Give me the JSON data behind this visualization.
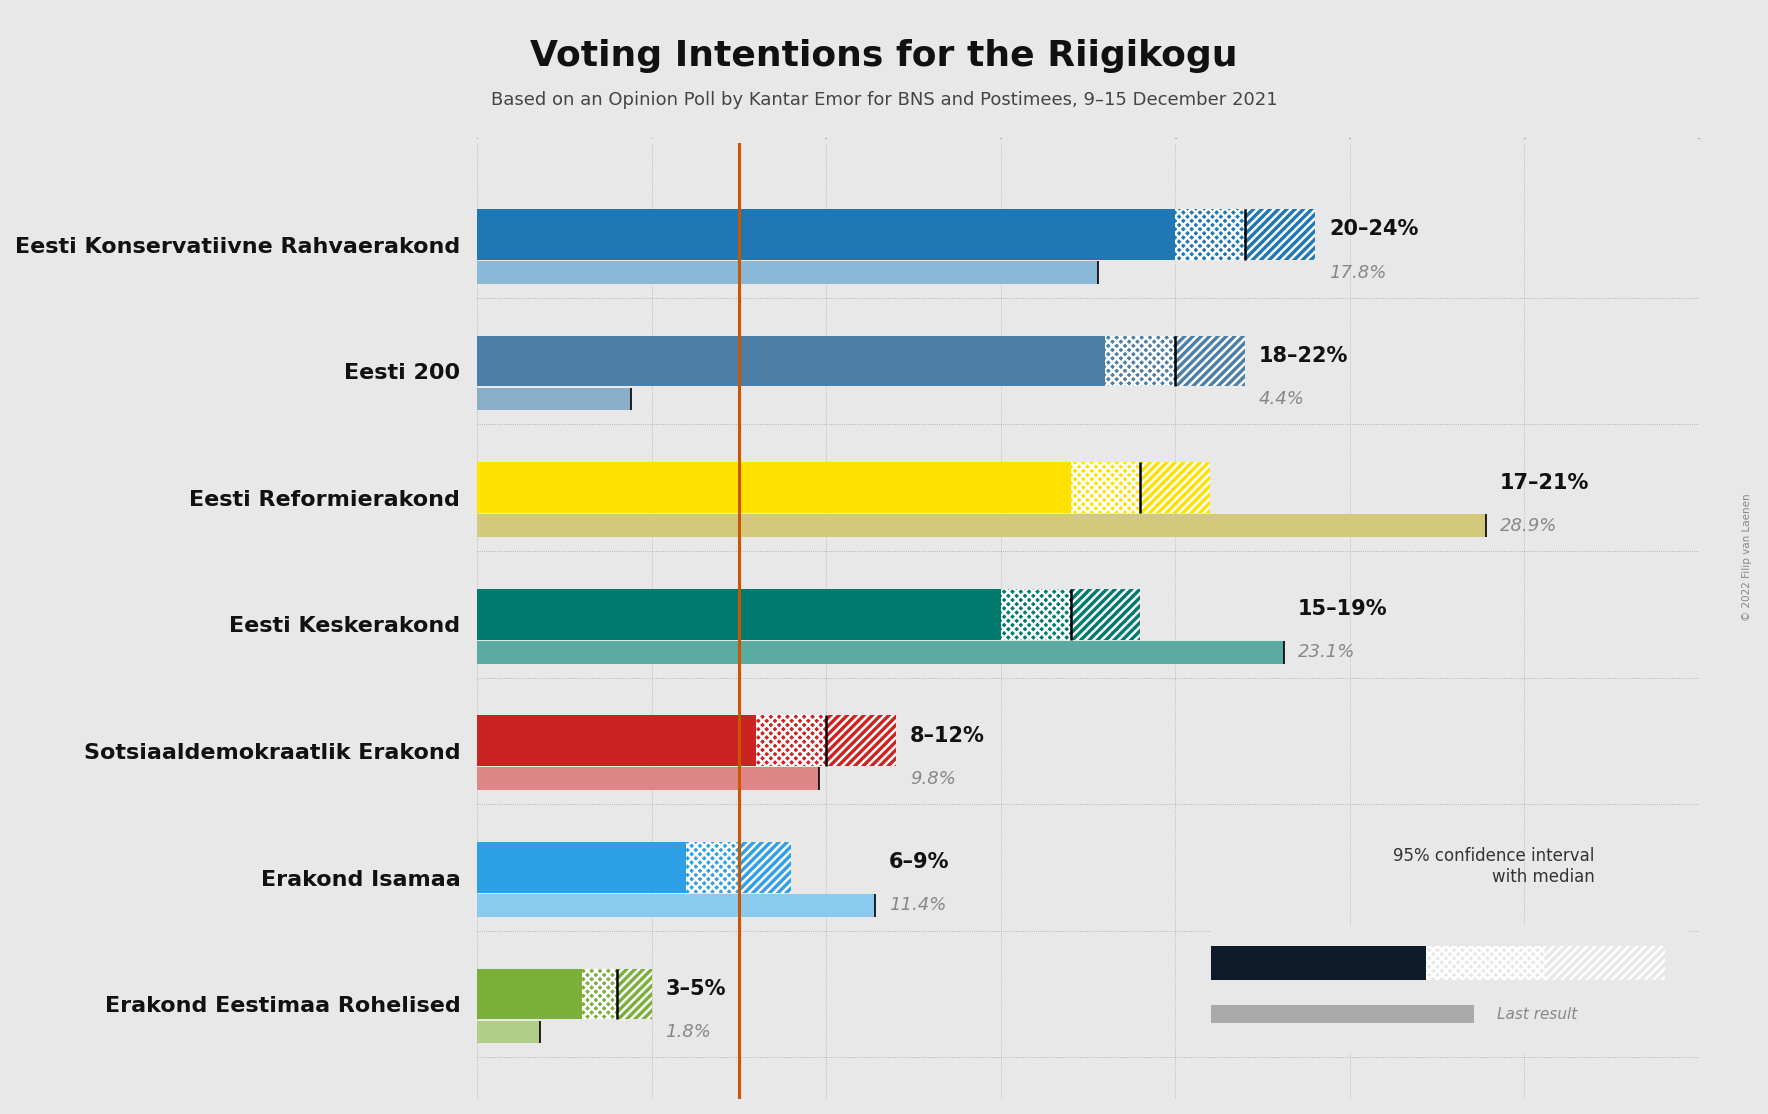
{
  "title": "Voting Intentions for the Riigikogu",
  "subtitle": "Based on an Opinion Poll by Kantar Emor for BNS and Postimees, 9–15 December 2021",
  "copyright": "© 2022 Filip van Laenen",
  "background_color": "#e8e8e8",
  "parties": [
    {
      "name": "Eesti Konservatiivne Rahvaerakond",
      "color": "#1F77B4",
      "light_color": "#8ab8d9",
      "ci_low": 20,
      "ci_high": 24,
      "median": 22,
      "last_result": 17.8,
      "label": "20–24%",
      "last_label": "17.8%"
    },
    {
      "name": "Eesti 200",
      "color": "#4B7FA8",
      "light_color": "#8aaec8",
      "ci_low": 18,
      "ci_high": 22,
      "median": 20,
      "last_result": 4.4,
      "label": "18–22%",
      "last_label": "4.4%"
    },
    {
      "name": "Eesti Reformierakond",
      "color": "#FFE200",
      "light_color": "#d4c87a",
      "ci_low": 17,
      "ci_high": 21,
      "median": 19,
      "last_result": 28.9,
      "label": "17–21%",
      "last_label": "28.9%"
    },
    {
      "name": "Eesti Keskerakond",
      "color": "#007A6E",
      "light_color": "#5aaba2",
      "ci_low": 15,
      "ci_high": 19,
      "median": 17,
      "last_result": 23.1,
      "label": "15–19%",
      "last_label": "23.1%"
    },
    {
      "name": "Sotsiaaldemokraatlik Erakond",
      "color": "#CC2222",
      "light_color": "#de8585",
      "ci_low": 8,
      "ci_high": 12,
      "median": 10,
      "last_result": 9.8,
      "label": "8–12%",
      "last_label": "9.8%"
    },
    {
      "name": "Erakond Isamaa",
      "color": "#2EA0E8",
      "light_color": "#8acaef",
      "ci_low": 6,
      "ci_high": 9,
      "median": 7.5,
      "last_result": 11.4,
      "label": "6–9%",
      "last_label": "11.4%"
    },
    {
      "name": "Erakond Eestimaa Rohelised",
      "color": "#7AAF3A",
      "light_color": "#b0ce88",
      "ci_low": 3,
      "ci_high": 5,
      "median": 4,
      "last_result": 1.8,
      "label": "3–5%",
      "last_label": "1.8%"
    }
  ],
  "orange_line": 7.5,
  "xlim_max": 35,
  "bar_height": 0.4,
  "last_bar_height": 0.18,
  "label_fontsize": 15,
  "last_label_fontsize": 13,
  "party_name_fontsize": 16,
  "dark_navy": "#0D1B2A"
}
